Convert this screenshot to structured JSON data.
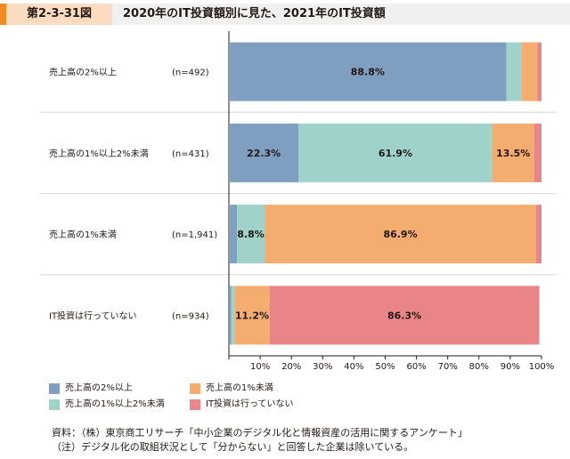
{
  "header": {
    "tag": "第2-3-31図",
    "title": "2020年のIT投資額別に見た、2021年のIT投資額"
  },
  "chart_data": {
    "type": "bar",
    "orientation": "horizontal",
    "stacked": true,
    "xlim": [
      0,
      100
    ],
    "x_ticks": [
      "10%",
      "20%",
      "30%",
      "40%",
      "50%",
      "60%",
      "70%",
      "80%",
      "90%",
      "100%"
    ],
    "categories": [
      {
        "label": "売上高の2%以上",
        "n": "(n=492)"
      },
      {
        "label": "売上高の1%以上2%未満",
        "n": "(n=431)"
      },
      {
        "label": "売上高の1%未満",
        "n": "(n=1,941)"
      },
      {
        "label": "IT投資は行っていない",
        "n": "(n=934)"
      }
    ],
    "series": [
      {
        "name": "売上高の2%以上",
        "color": "#7f9fc0",
        "values": [
          88.8,
          22.3,
          2.6,
          0.8
        ],
        "labels": [
          "88.8%",
          "22.3%",
          "",
          ""
        ]
      },
      {
        "name": "売上高の1%以上2%未満",
        "color": "#9fd2c8",
        "values": [
          4.9,
          61.9,
          8.8,
          1.0
        ],
        "labels": [
          "",
          "61.9%",
          "8.8%",
          ""
        ]
      },
      {
        "name": "売上高の1%未満",
        "color": "#f5ad6f",
        "values": [
          5.0,
          13.5,
          86.9,
          11.2
        ],
        "labels": [
          "",
          "13.5%",
          "86.9%",
          "11.2%"
        ]
      },
      {
        "name": "IT投資は行っていない",
        "color": "#e98588",
        "values": [
          1.3,
          2.3,
          1.7,
          86.3
        ],
        "labels": [
          "",
          "",
          "",
          "86.3%"
        ]
      }
    ],
    "legend_position": "bottom-left",
    "grid": false
  },
  "notes": {
    "source": "資料：（株）東京商工リサーチ「中小企業のデジタル化と情報資産の活用に関するアンケート」",
    "caveat": "（注）デジタル化の取組状況として「分からない」と回答した企業は除いている。"
  }
}
